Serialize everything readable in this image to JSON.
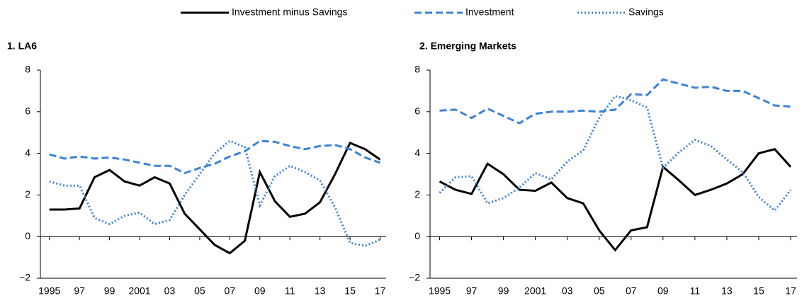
{
  "chart_data": [
    {
      "type": "line",
      "title": "1. LA6",
      "x": [
        1995,
        1996,
        1997,
        1998,
        1999,
        2000,
        2001,
        2002,
        2003,
        2004,
        2005,
        2006,
        2007,
        2008,
        2009,
        2010,
        2011,
        2012,
        2013,
        2014,
        2015,
        2016,
        2017
      ],
      "xlim": [
        1994.4,
        2017.4
      ],
      "xticks": [
        1995,
        {
          "value": 1997,
          "label": "97"
        },
        {
          "value": 1999,
          "label": "99"
        },
        2001,
        {
          "value": 2003,
          "label": "03"
        },
        {
          "value": 2005,
          "label": "05"
        },
        {
          "value": 2007,
          "label": "07"
        },
        {
          "value": 2009,
          "label": "09"
        },
        {
          "value": 2011,
          "label": "11"
        },
        {
          "value": 2013,
          "label": "13"
        },
        {
          "value": 2015,
          "label": "15"
        },
        {
          "value": 2017,
          "label": "17"
        }
      ],
      "ylim": [
        -2,
        8
      ],
      "yticks": [
        {
          "value": -2,
          "label": "−2"
        },
        0,
        2,
        4,
        6,
        8
      ],
      "series": [
        {
          "name": "Investment minus Savings",
          "color": "#000000",
          "dash": "solid",
          "values": [
            1.3,
            1.3,
            1.35,
            2.85,
            3.2,
            2.65,
            2.45,
            2.85,
            2.55,
            1.1,
            0.35,
            -0.4,
            -0.8,
            -0.2,
            3.1,
            1.7,
            0.95,
            1.1,
            1.65,
            3.0,
            4.5,
            4.2,
            3.7
          ]
        },
        {
          "name": "Investment",
          "color": "#3c82d8",
          "dash": "dashed",
          "values": [
            3.95,
            3.75,
            3.85,
            3.75,
            3.8,
            3.7,
            3.55,
            3.4,
            3.4,
            3.05,
            3.3,
            3.5,
            3.85,
            4.1,
            4.6,
            4.55,
            4.35,
            4.2,
            4.35,
            4.4,
            4.2,
            3.8,
            3.55
          ]
        },
        {
          "name": "Savings",
          "color": "#3c82d8",
          "dash": "dotted",
          "values": [
            2.65,
            2.45,
            2.45,
            0.9,
            0.6,
            1.0,
            1.15,
            0.6,
            0.8,
            2.0,
            3.0,
            4.0,
            4.6,
            4.3,
            1.5,
            2.9,
            3.4,
            3.1,
            2.7,
            1.4,
            -0.3,
            -0.45,
            -0.15
          ]
        }
      ]
    },
    {
      "type": "line",
      "title": "2. Emerging Markets",
      "x": [
        1995,
        1996,
        1997,
        1998,
        1999,
        2000,
        2001,
        2002,
        2003,
        2004,
        2005,
        2006,
        2007,
        2008,
        2009,
        2010,
        2011,
        2012,
        2013,
        2014,
        2015,
        2016,
        2017
      ],
      "xlim": [
        1994.4,
        2017.4
      ],
      "xticks": [
        1995,
        {
          "value": 1997,
          "label": "97"
        },
        {
          "value": 1999,
          "label": "99"
        },
        2001,
        {
          "value": 2003,
          "label": "03"
        },
        {
          "value": 2005,
          "label": "05"
        },
        {
          "value": 2007,
          "label": "07"
        },
        {
          "value": 2009,
          "label": "09"
        },
        {
          "value": 2011,
          "label": "11"
        },
        {
          "value": 2013,
          "label": "13"
        },
        {
          "value": 2015,
          "label": "15"
        },
        {
          "value": 2017,
          "label": "17"
        }
      ],
      "ylim": [
        -2,
        8
      ],
      "yticks": [
        {
          "value": -2,
          "label": "−2"
        },
        0,
        2,
        4,
        6,
        8
      ],
      "series": [
        {
          "color": "#000000",
          "dash": "solid",
          "values": [
            2.65,
            2.25,
            2.05,
            3.5,
            3.0,
            2.25,
            2.2,
            2.6,
            1.85,
            1.6,
            0.3,
            -0.65,
            0.3,
            0.45,
            3.35,
            2.7,
            2.0,
            2.25,
            2.55,
            3.0,
            4.0,
            4.2,
            3.35
          ]
        },
        {
          "color": "#3c82d8",
          "dash": "dashed",
          "values": [
            6.05,
            6.1,
            5.7,
            6.15,
            5.8,
            5.45,
            5.9,
            6.0,
            6.0,
            6.05,
            6.0,
            6.1,
            6.85,
            6.8,
            7.55,
            7.35,
            7.15,
            7.2,
            7.0,
            7.0,
            6.65,
            6.3,
            6.25
          ]
        },
        {
          "color": "#3c82d8",
          "dash": "dotted",
          "values": [
            2.1,
            2.85,
            2.9,
            1.6,
            1.85,
            2.35,
            3.05,
            2.75,
            3.6,
            4.15,
            5.7,
            6.75,
            6.55,
            6.2,
            3.3,
            4.05,
            4.65,
            4.35,
            3.7,
            3.1,
            1.9,
            1.25,
            2.25
          ]
        }
      ]
    }
  ]
}
